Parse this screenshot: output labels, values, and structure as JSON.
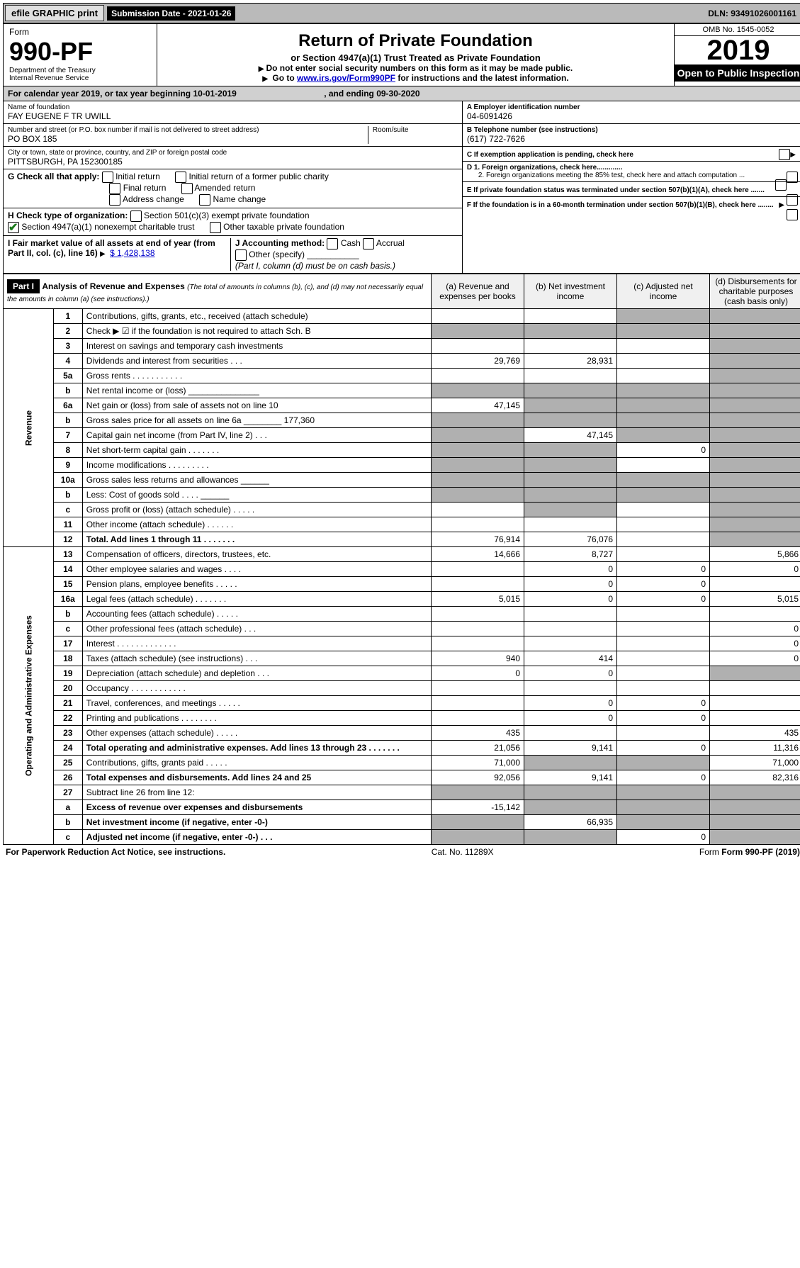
{
  "topbar": {
    "efile": "efile GRAPHIC print",
    "sub_label": "Submission Date - 2021-01-26",
    "dln": "DLN: 93491026001161"
  },
  "header": {
    "form_word": "Form",
    "form_number": "990-PF",
    "dept": "Department of the Treasury",
    "irs": "Internal Revenue Service",
    "title": "Return of Private Foundation",
    "subtitle": "or Section 4947(a)(1) Trust Treated as Private Foundation",
    "note1": "Do not enter social security numbers on this form as it may be made public.",
    "note2_pre": "Go to ",
    "note2_link": "www.irs.gov/Form990PF",
    "note2_post": " for instructions and the latest information.",
    "omb": "OMB No. 1545-0052",
    "year": "2019",
    "open": "Open to Public Inspection"
  },
  "period": {
    "label_pre": "For calendar year 2019, or tax year beginning ",
    "begin": "10-01-2019",
    "label_mid": " , and ending ",
    "end": "09-30-2020"
  },
  "ident": {
    "name_label": "Name of foundation",
    "name": "FAY EUGENE F TR UWILL",
    "addr_label": "Number and street (or P.O. box number if mail is not delivered to street address)",
    "addr": "PO BOX 185",
    "room_label": "Room/suite",
    "city_label": "City or town, state or province, country, and ZIP or foreign postal code",
    "city": "PITTSBURGH, PA  152300185",
    "ein_label": "A Employer identification number",
    "ein": "04-6091426",
    "tel_label": "B Telephone number (see instructions)",
    "tel": "(617) 722-7626",
    "c_label": "C If exemption application is pending, check here",
    "d1": "D 1. Foreign organizations, check here.............",
    "d2": "2. Foreign organizations meeting the 85% test, check here and attach computation ...",
    "e": "E  If private foundation status was terminated under section 507(b)(1)(A), check here .......",
    "f": "F  If the foundation is in a 60-month termination under section 507(b)(1)(B), check here ........"
  },
  "checks": {
    "g_label": "G Check all that apply:",
    "initial": "Initial return",
    "initial_former": "Initial return of a former public charity",
    "final": "Final return",
    "amended": "Amended return",
    "addr_change": "Address change",
    "name_change": "Name change",
    "h_label": "H Check type of organization:",
    "h1": "Section 501(c)(3) exempt private foundation",
    "h2": "Section 4947(a)(1) nonexempt charitable trust",
    "h3": "Other taxable private foundation",
    "i_label": "I Fair market value of all assets at end of year (from Part II, col. (c), line 16) ",
    "i_val": "$  1,428,138",
    "j_label": "J Accounting method:",
    "j_cash": "Cash",
    "j_accrual": "Accrual",
    "j_other": "Other (specify)",
    "j_note": "(Part I, column (d) must be on cash basis.)"
  },
  "part1": {
    "label": "Part I",
    "title": "Analysis of Revenue and Expenses",
    "title_note": "(The total of amounts in columns (b), (c), and (d) may not necessarily equal the amounts in column (a) (see instructions).)",
    "col_a": "(a)    Revenue and expenses per books",
    "col_b": "(b)   Net investment income",
    "col_c": "(c)   Adjusted net income",
    "col_d": "(d)   Disbursements for charitable purposes (cash basis only)"
  },
  "vert_labels": {
    "revenue": "Revenue",
    "expenses": "Operating and Administrative Expenses"
  },
  "rows": [
    {
      "n": "1",
      "desc": "Contributions, gifts, grants, etc., received (attach schedule)",
      "a": "",
      "b": "",
      "c": "",
      "d": "",
      "shade_c": true,
      "shade_d": true
    },
    {
      "n": "2",
      "desc": "Check ▶ ☑ if the foundation is not required to attach Sch. B",
      "a": "",
      "b": "",
      "c": "",
      "d": "",
      "shade_a": true,
      "shade_b": true,
      "shade_c": true,
      "shade_d": true
    },
    {
      "n": "3",
      "desc": "Interest on savings and temporary cash investments",
      "a": "",
      "b": "",
      "c": "",
      "d": "",
      "shade_d": true
    },
    {
      "n": "4",
      "desc": "Dividends and interest from securities   .   .   .",
      "a": "29,769",
      "b": "28,931",
      "c": "",
      "d": "",
      "shade_d": true
    },
    {
      "n": "5a",
      "desc": "Gross rents   .   .   .   .   .   .   .   .   .   .   .",
      "a": "",
      "b": "",
      "c": "",
      "d": "",
      "shade_d": true
    },
    {
      "n": "b",
      "desc": "Net rental income or (loss)  _______________",
      "a": "",
      "b": "",
      "c": "",
      "d": "",
      "shade_a": true,
      "shade_b": true,
      "shade_c": true,
      "shade_d": true
    },
    {
      "n": "6a",
      "desc": "Net gain or (loss) from sale of assets not on line 10",
      "a": "47,145",
      "b": "",
      "c": "",
      "d": "",
      "shade_b": true,
      "shade_c": true,
      "shade_d": true
    },
    {
      "n": "b",
      "desc": "Gross sales price for all assets on line 6a ________ 177,360",
      "a": "",
      "b": "",
      "c": "",
      "d": "",
      "shade_a": true,
      "shade_b": true,
      "shade_c": true,
      "shade_d": true
    },
    {
      "n": "7",
      "desc": "Capital gain net income (from Part IV, line 2)   .   .   .",
      "a": "",
      "b": "47,145",
      "c": "",
      "d": "",
      "shade_a": true,
      "shade_c": true,
      "shade_d": true
    },
    {
      "n": "8",
      "desc": "Net short-term capital gain   .   .   .   .   .   .   .",
      "a": "",
      "b": "",
      "c": "0",
      "d": "",
      "shade_a": true,
      "shade_b": true,
      "shade_d": true
    },
    {
      "n": "9",
      "desc": "Income modifications   .   .   .   .   .   .   .   .   .",
      "a": "",
      "b": "",
      "c": "",
      "d": "",
      "shade_a": true,
      "shade_b": true,
      "shade_d": true
    },
    {
      "n": "10a",
      "desc": "Gross sales less returns and allowances  ______",
      "a": "",
      "b": "",
      "c": "",
      "d": "",
      "shade_a": true,
      "shade_b": true,
      "shade_c": true,
      "shade_d": true
    },
    {
      "n": "b",
      "desc": "Less: Cost of goods sold     .   .   .   .   ______",
      "a": "",
      "b": "",
      "c": "",
      "d": "",
      "shade_a": true,
      "shade_b": true,
      "shade_c": true,
      "shade_d": true
    },
    {
      "n": "c",
      "desc": "Gross profit or (loss) (attach schedule)   .   .   .   .   .",
      "a": "",
      "b": "",
      "c": "",
      "d": "",
      "shade_b": true,
      "shade_d": true
    },
    {
      "n": "11",
      "desc": "Other income (attach schedule)   .   .   .   .   .   .",
      "a": "",
      "b": "",
      "c": "",
      "d": "",
      "shade_d": true
    },
    {
      "n": "12",
      "desc": "Total. Add lines 1 through 11   .   .   .   .   .   .   .",
      "a": "76,914",
      "b": "76,076",
      "c": "",
      "d": "",
      "bold": true,
      "shade_d": true
    },
    {
      "n": "13",
      "desc": "Compensation of officers, directors, trustees, etc.",
      "a": "14,666",
      "b": "8,727",
      "c": "",
      "d": "5,866"
    },
    {
      "n": "14",
      "desc": "Other employee salaries and wages   .   .   .   .",
      "a": "",
      "b": "0",
      "c": "0",
      "d": "0"
    },
    {
      "n": "15",
      "desc": "Pension plans, employee benefits   .   .   .   .   .",
      "a": "",
      "b": "0",
      "c": "0",
      "d": ""
    },
    {
      "n": "16a",
      "desc": "Legal fees (attach schedule)   .   .   .   .   .   .   .",
      "a": "5,015",
      "b": "0",
      "c": "0",
      "d": "5,015"
    },
    {
      "n": "b",
      "desc": "Accounting fees (attach schedule)   .   .   .   .   .",
      "a": "",
      "b": "",
      "c": "",
      "d": ""
    },
    {
      "n": "c",
      "desc": "Other professional fees (attach schedule)   .   .   .",
      "a": "",
      "b": "",
      "c": "",
      "d": "0"
    },
    {
      "n": "17",
      "desc": "Interest   .   .   .   .   .   .   .   .   .   .   .   .   .",
      "a": "",
      "b": "",
      "c": "",
      "d": "0"
    },
    {
      "n": "18",
      "desc": "Taxes (attach schedule) (see instructions)   .   .   .",
      "a": "940",
      "b": "414",
      "c": "",
      "d": "0"
    },
    {
      "n": "19",
      "desc": "Depreciation (attach schedule) and depletion   .   .   .",
      "a": "0",
      "b": "0",
      "c": "",
      "d": "",
      "shade_d": true
    },
    {
      "n": "20",
      "desc": "Occupancy   .   .   .   .   .   .   .   .   .   .   .   .",
      "a": "",
      "b": "",
      "c": "",
      "d": ""
    },
    {
      "n": "21",
      "desc": "Travel, conferences, and meetings   .   .   .   .   .",
      "a": "",
      "b": "0",
      "c": "0",
      "d": ""
    },
    {
      "n": "22",
      "desc": "Printing and publications   .   .   .   .   .   .   .   .",
      "a": "",
      "b": "0",
      "c": "0",
      "d": ""
    },
    {
      "n": "23",
      "desc": "Other expenses (attach schedule)   .   .   .   .   .",
      "a": "435",
      "b": "",
      "c": "",
      "d": "435"
    },
    {
      "n": "24",
      "desc": "Total operating and administrative expenses. Add lines 13 through 23   .   .   .   .   .   .   .",
      "a": "21,056",
      "b": "9,141",
      "c": "0",
      "d": "11,316",
      "bold": true
    },
    {
      "n": "25",
      "desc": "Contributions, gifts, grants paid   .   .   .   .   .",
      "a": "71,000",
      "b": "",
      "c": "",
      "d": "71,000",
      "shade_b": true,
      "shade_c": true
    },
    {
      "n": "26",
      "desc": "Total expenses and disbursements. Add lines 24 and 25",
      "a": "92,056",
      "b": "9,141",
      "c": "0",
      "d": "82,316",
      "bold": true
    },
    {
      "n": "27",
      "desc": "Subtract line 26 from line 12:",
      "a": "",
      "b": "",
      "c": "",
      "d": "",
      "shade_a": true,
      "shade_b": true,
      "shade_c": true,
      "shade_d": true
    },
    {
      "n": "a",
      "desc": "Excess of revenue over expenses and disbursements",
      "a": "-15,142",
      "b": "",
      "c": "",
      "d": "",
      "bold": true,
      "shade_b": true,
      "shade_c": true,
      "shade_d": true
    },
    {
      "n": "b",
      "desc": "Net investment income (if negative, enter -0-)",
      "a": "",
      "b": "66,935",
      "c": "",
      "d": "",
      "bold": true,
      "shade_a": true,
      "shade_c": true,
      "shade_d": true
    },
    {
      "n": "c",
      "desc": "Adjusted net income (if negative, enter -0-)   .   .   .",
      "a": "",
      "b": "",
      "c": "0",
      "d": "",
      "bold": true,
      "shade_a": true,
      "shade_b": true,
      "shade_d": true
    }
  ],
  "footer": {
    "left": "For Paperwork Reduction Act Notice, see instructions.",
    "mid": "Cat. No. 11289X",
    "right": "Form 990-PF (2019)"
  }
}
